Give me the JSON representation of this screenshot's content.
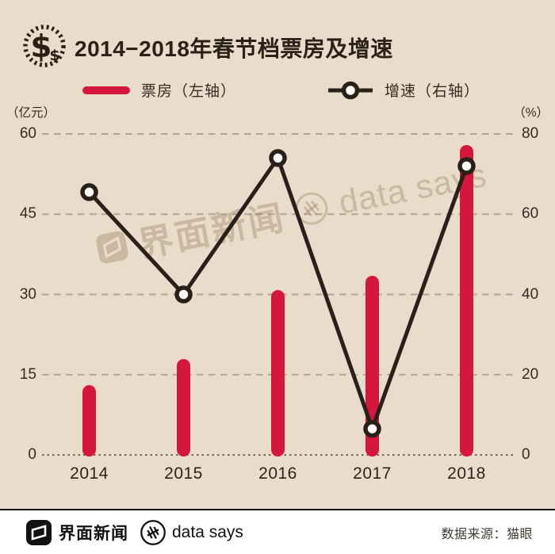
{
  "header": {
    "title": "2014−2018年春节档票房及增速",
    "icon": "dollar-icon"
  },
  "legend": [
    {
      "label": "票房（左轴）",
      "swatch": "red-bar"
    },
    {
      "label": "增速（右轴）",
      "swatch": "black-line-circle-marker"
    }
  ],
  "axes": {
    "left_unit": "（亿元）",
    "right_unit": "（%）"
  },
  "chart_data": {
    "type": "bar",
    "title": "2014−2018年春节档票房及增速",
    "categories": [
      "2014",
      "2015",
      "2016",
      "2017",
      "2018"
    ],
    "series": [
      {
        "name": "票房（左轴）",
        "type": "bar",
        "axis": "left",
        "unit": "亿元",
        "values": [
          13.0,
          17.9,
          30.8,
          33.5,
          57.9
        ]
      },
      {
        "name": "增速（右轴）",
        "type": "line",
        "axis": "right",
        "unit": "%",
        "values": [
          65.5,
          40,
          74,
          6.5,
          72
        ]
      }
    ],
    "left_axis": {
      "label": "（亿元）",
      "ticks": [
        0,
        15,
        30,
        45,
        60
      ],
      "range": [
        0,
        60
      ]
    },
    "right_axis": {
      "label": "（%）",
      "ticks": [
        0,
        20,
        40,
        60,
        80
      ],
      "range": [
        0,
        80
      ]
    },
    "grid": "dashed-horizontal",
    "legend_position": "top"
  },
  "watermark": {
    "brand": "界面新闻",
    "brand2": "data says"
  },
  "footer": {
    "brand": "界面新闻",
    "brand2": "data says",
    "source": "数据来源：猫眼"
  },
  "colors": {
    "background": "#e9dcca",
    "bar_red": "#d5173e",
    "line_dark": "#29201a",
    "grid_dash": "#b0a493",
    "zero_line": "#6f6558",
    "footer_bg": "#ffffff",
    "text_dark": "#2b2118"
  }
}
